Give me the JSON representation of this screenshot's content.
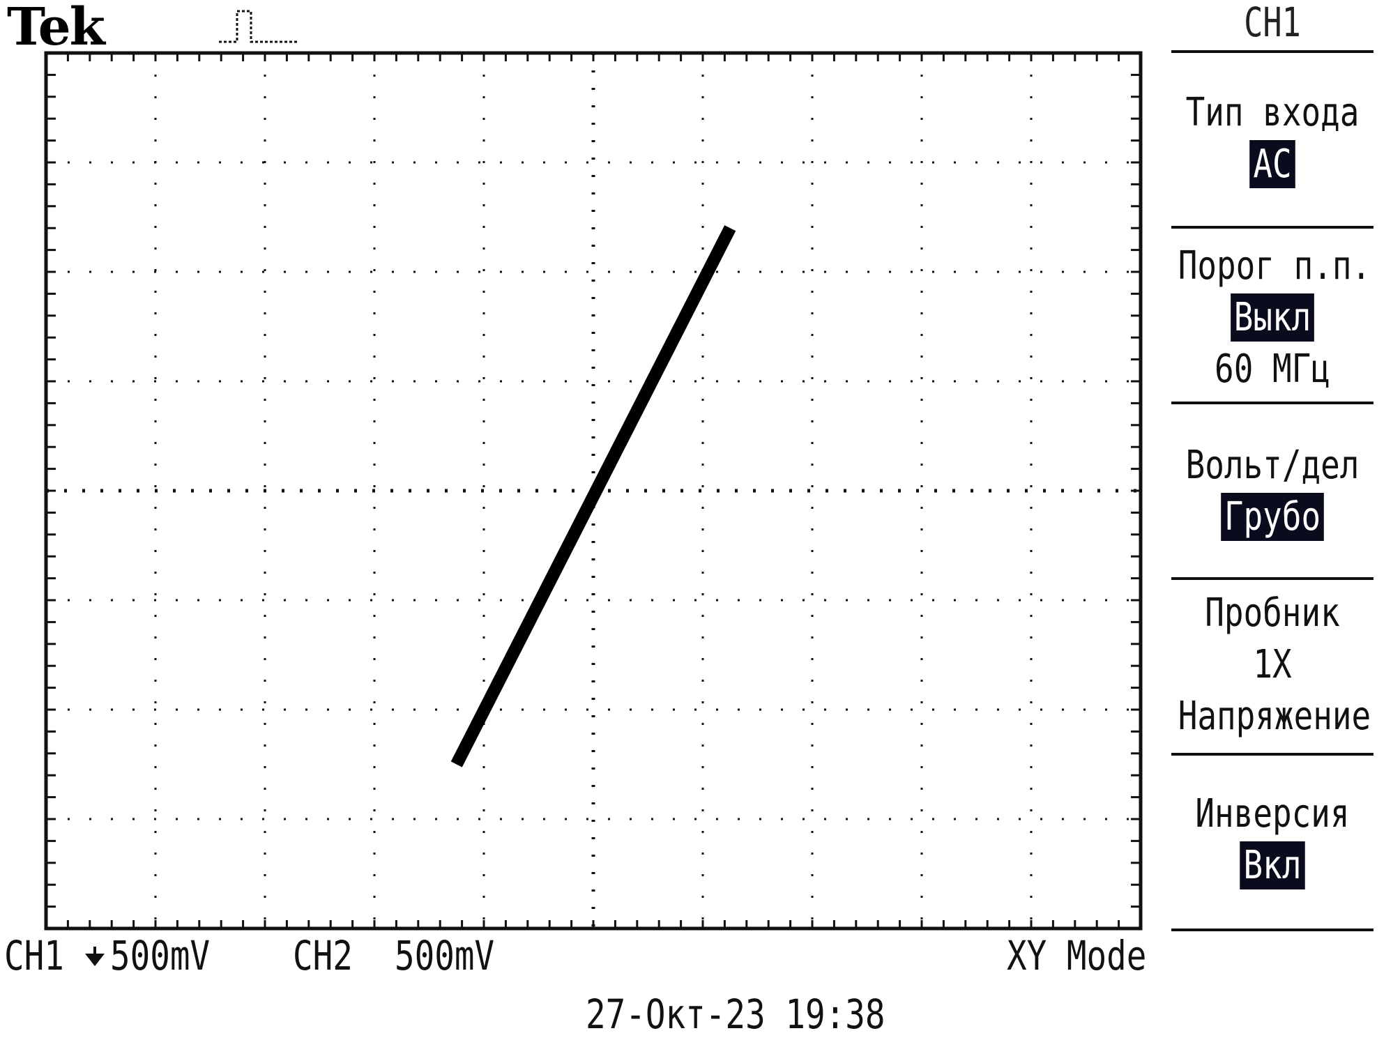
{
  "header": {
    "brand": "Tek",
    "acquisition_state_icon": "trigger-pulse-icon"
  },
  "menu": {
    "channel": "CH1",
    "items": [
      {
        "label": "Тип входа",
        "value": "AC",
        "highlighted": true
      },
      {
        "label": "Порог п.п.",
        "value": "Выкл",
        "highlighted": true,
        "extra": "60 МГц"
      },
      {
        "label": "Вольт/дел",
        "value": "Грубо",
        "highlighted": true
      },
      {
        "label": "Пробник",
        "value": "1X",
        "highlighted": false,
        "extra": "Напряжение"
      },
      {
        "label": "Инверсия",
        "value": "Вкл",
        "highlighted": true
      }
    ]
  },
  "status": {
    "ch1": "CH1",
    "ch1_icon": "ground-marker-icon",
    "ch1_scale": "500mV",
    "ch2": "CH2",
    "ch2_scale": "500mV",
    "mode": "XY Mode"
  },
  "datetime": "27-Окт-23 19:38",
  "colors": {
    "trace": "#000000",
    "grid": "#111111",
    "highlight_bg": "#0b0b1e",
    "background": "#ffffff"
  },
  "chart_data": {
    "type": "line",
    "mode": "XY",
    "grid_divisions": [
      10,
      8
    ],
    "x_range_div": [
      -5,
      5
    ],
    "y_range_div": [
      -4,
      4
    ],
    "x": [
      -1.25,
      1.25
    ],
    "y": [
      -2.5,
      2.4
    ]
  }
}
